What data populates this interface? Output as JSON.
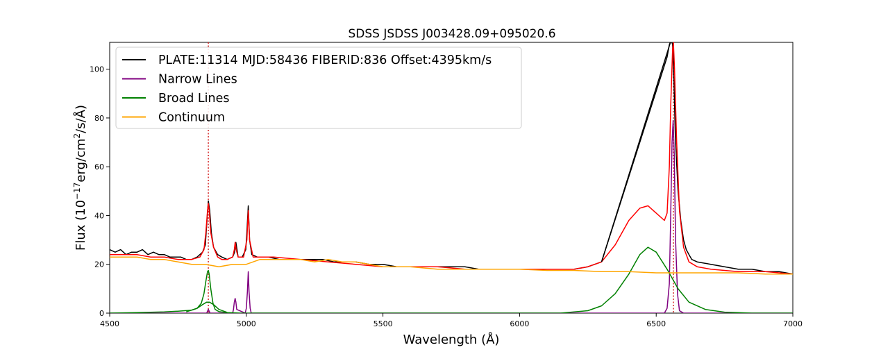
{
  "chart_data": {
    "type": "line",
    "title": "SDSS JSDSS J003428.09+095020.6",
    "xlabel": "Wavelength (Å)",
    "ylabel": "Flux (10^-17 erg/cm²/s/Å)",
    "xlim": [
      4500,
      7000
    ],
    "ylim": [
      0,
      111
    ],
    "xticks": [
      4500,
      5000,
      5500,
      6000,
      6500,
      7000
    ],
    "yticks": [
      0,
      20,
      40,
      60,
      80,
      100
    ],
    "grid": false,
    "legend_position": "top-left",
    "vlines": [
      {
        "x": 4861,
        "color": "#d62728",
        "style": "dotted"
      },
      {
        "x": 6563,
        "color": "#d62728",
        "style": "dotted"
      }
    ],
    "series": [
      {
        "name": "PLATE:11314 MJD:58436 FIBERID:836 Offset:4395km/s",
        "color": "#000000",
        "x": [
          4500,
          4520,
          4540,
          4560,
          4580,
          4600,
          4620,
          4640,
          4660,
          4680,
          4700,
          4720,
          4740,
          4760,
          4780,
          4800,
          4820,
          4840,
          4850,
          4856,
          4861,
          4866,
          4872,
          4880,
          4895,
          4910,
          4930,
          4950,
          4957,
          4962,
          4970,
          4985,
          4998,
          5002,
          5007,
          5012,
          5020,
          5040,
          5080,
          5120,
          5160,
          5200,
          5240,
          5280,
          5320,
          5360,
          5400,
          5450,
          5500,
          5550,
          5600,
          5650,
          5700,
          5750,
          5800,
          5850,
          5900,
          5950,
          6000,
          6050,
          6100,
          6150,
          6200,
          6250,
          6300,
          6540,
          6548,
          6555,
          6560,
          6565,
          6570,
          6580,
          6590,
          6600,
          6610,
          6620,
          6630,
          6650,
          6700,
          6750,
          6800,
          6850,
          6900,
          6950,
          7000
        ],
        "y": [
          26,
          25,
          26,
          24,
          25,
          25,
          26,
          24,
          25,
          24,
          24,
          23,
          23,
          23,
          22,
          22,
          23,
          25,
          28,
          38,
          46,
          42,
          33,
          27,
          24,
          23,
          22,
          23,
          25,
          29,
          23,
          23,
          26,
          33,
          44,
          30,
          24,
          23,
          23,
          22,
          22,
          22,
          22,
          22,
          21,
          21,
          21,
          20,
          20,
          19,
          19,
          19,
          19,
          19,
          19,
          18,
          18,
          18,
          18,
          18,
          18,
          18,
          18,
          19,
          21,
          105,
          110,
          112,
          110,
          95,
          72,
          50,
          38,
          30,
          26,
          24,
          22,
          21,
          20,
          19,
          18,
          18,
          17,
          17,
          16
        ]
      },
      {
        "name": "",
        "color": "#ff0000",
        "x": [
          4500,
          4550,
          4600,
          4650,
          4700,
          4750,
          4800,
          4830,
          4845,
          4852,
          4858,
          4861,
          4864,
          4870,
          4880,
          4895,
          4910,
          4930,
          4950,
          4956,
          4959,
          4963,
          4970,
          4990,
          5002,
          5007,
          5012,
          5025,
          5050,
          5100,
          5200,
          5300,
          5400,
          5500,
          5600,
          5700,
          5800,
          5900,
          6000,
          6100,
          6200,
          6250,
          6300,
          6350,
          6400,
          6440,
          6470,
          6500,
          6530,
          6540,
          6548,
          6553,
          6560,
          6563,
          6567,
          6575,
          6585,
          6600,
          6620,
          6650,
          6700,
          6800,
          6900,
          7000
        ],
        "y": [
          24,
          24,
          24,
          23,
          23,
          22,
          22,
          23,
          26,
          33,
          42,
          45,
          42,
          33,
          27,
          23,
          22,
          22,
          23,
          26,
          29,
          26,
          23,
          23,
          30,
          42,
          30,
          23,
          23,
          23,
          22,
          21,
          20,
          19,
          19,
          19,
          18,
          18,
          18,
          18,
          18,
          19,
          21,
          28,
          38,
          43,
          44,
          41,
          38,
          41,
          60,
          85,
          108,
          111,
          100,
          70,
          42,
          27,
          21,
          19,
          18,
          17,
          17,
          16
        ]
      },
      {
        "name": "",
        "color": "#000000",
        "x": [
          6300,
          6555
        ],
        "y": [
          21,
          112
        ]
      },
      {
        "name": "Narrow Lines",
        "color": "#800080",
        "x": [
          4500,
          4855,
          4858,
          4861,
          4864,
          4867,
          4950,
          4953,
          4956,
          4959,
          4962,
          4965,
          4996,
          5000,
          5004,
          5007,
          5010,
          5014,
          5018,
          6530,
          6540,
          6548,
          6553,
          6558,
          6562,
          6566,
          6571,
          6578,
          6585,
          6600,
          7000
        ],
        "y": [
          0,
          0,
          0.8,
          1.5,
          0.8,
          0,
          0,
          1.5,
          4.5,
          6,
          4.5,
          1.5,
          0,
          2,
          9,
          17,
          9,
          2,
          0,
          0,
          2,
          12,
          40,
          70,
          79,
          65,
          30,
          8,
          1,
          0,
          0
        ]
      },
      {
        "name": "Broad Lines",
        "color": "#008000",
        "x": [
          4500,
          4600,
          4700,
          4750,
          4800,
          4820,
          4835,
          4845,
          4852,
          4858,
          4861,
          4864,
          4870,
          4878,
          4886,
          4900,
          4930,
          4980,
          5050,
          6150,
          6250,
          6300,
          6350,
          6400,
          6440,
          6470,
          6500,
          6540,
          6580,
          6620,
          6680,
          6750,
          6850,
          7000
        ],
        "y": [
          0,
          0.2,
          0.5,
          0.8,
          1.2,
          2,
          4,
          8,
          13,
          17,
          17.5,
          16,
          10,
          4,
          1.5,
          0.6,
          0.2,
          0,
          0,
          0,
          1,
          3,
          8,
          16,
          24,
          27,
          25,
          18,
          10,
          4.5,
          1.5,
          0.4,
          0,
          0
        ]
      },
      {
        "name": "",
        "color": "#008000",
        "x": [
          4780,
          4820,
          4840,
          4855,
          4865,
          4880,
          4900,
          4930
        ],
        "y": [
          0.5,
          2,
          3.5,
          4.5,
          4.5,
          3.5,
          1.5,
          0.3
        ]
      },
      {
        "name": "Continuum",
        "color": "#ffa500",
        "x": [
          4500,
          4550,
          4600,
          4650,
          4700,
          4750,
          4800,
          4850,
          4900,
          4950,
          5000,
          5050,
          5100,
          5150,
          5200,
          5250,
          5300,
          5350,
          5400,
          5450,
          5500,
          5600,
          5700,
          5800,
          5900,
          6000,
          6100,
          6200,
          6300,
          6400,
          6500,
          6600,
          6700,
          6800,
          6900,
          7000
        ],
        "y": [
          23,
          23,
          23,
          22,
          22,
          21,
          20,
          20,
          19,
          20,
          20,
          22,
          22,
          22,
          22,
          21,
          22,
          21,
          21,
          20,
          19,
          19,
          18,
          18,
          18,
          18,
          17.5,
          17.5,
          17,
          17,
          16.5,
          16.5,
          16.5,
          16.5,
          16,
          16
        ]
      }
    ]
  }
}
